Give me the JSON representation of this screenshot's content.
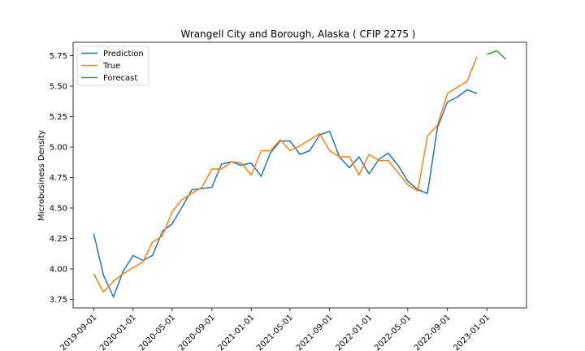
{
  "chart_data": {
    "type": "line",
    "title": "Wrangell City and Borough, Alaska ( CFIP 2275 )",
    "xlabel": "",
    "ylabel": "Microbusiness Density",
    "ylim": [
      3.68,
      5.86
    ],
    "y_ticks": [
      3.75,
      4.0,
      4.25,
      4.5,
      4.75,
      5.0,
      5.25,
      5.5,
      5.75
    ],
    "y_tick_labels": [
      "3.75",
      "4.00",
      "4.25",
      "4.50",
      "4.75",
      "5.00",
      "5.25",
      "5.50",
      "5.75"
    ],
    "x_ticks": [
      "2019-09-01",
      "2020-01-01",
      "2020-05-01",
      "2020-09-01",
      "2021-01-01",
      "2021-05-01",
      "2021-09-01",
      "2022-01-01",
      "2022-05-01",
      "2022-09-01",
      "2023-01-01"
    ],
    "legend_position": "upper left",
    "grid": false,
    "series": [
      {
        "name": "Prediction",
        "color": "#1f77b4",
        "x": [
          "2019-09-01",
          "2019-10-01",
          "2019-11-01",
          "2019-12-01",
          "2020-01-01",
          "2020-02-01",
          "2020-03-01",
          "2020-04-01",
          "2020-05-01",
          "2020-06-01",
          "2020-07-01",
          "2020-08-01",
          "2020-09-01",
          "2020-10-01",
          "2020-11-01",
          "2020-12-01",
          "2021-01-01",
          "2021-02-01",
          "2021-03-01",
          "2021-04-01",
          "2021-05-01",
          "2021-06-01",
          "2021-07-01",
          "2021-08-01",
          "2021-09-01",
          "2021-10-01",
          "2021-11-01",
          "2021-12-01",
          "2022-01-01",
          "2022-02-01",
          "2022-03-01",
          "2022-04-01",
          "2022-05-01",
          "2022-06-01",
          "2022-07-01",
          "2022-08-01",
          "2022-09-01",
          "2022-10-01",
          "2022-11-01",
          "2022-12-01"
        ],
        "values": [
          4.29,
          3.95,
          3.77,
          3.98,
          4.11,
          4.07,
          4.11,
          4.31,
          4.37,
          4.51,
          4.65,
          4.66,
          4.67,
          4.86,
          4.88,
          4.85,
          4.87,
          4.76,
          4.95,
          5.05,
          5.05,
          4.94,
          4.97,
          5.1,
          5.13,
          4.92,
          4.83,
          4.92,
          4.78,
          4.9,
          4.95,
          4.85,
          4.72,
          4.65,
          4.62,
          5.16,
          5.37,
          5.41,
          5.47,
          5.44
        ]
      },
      {
        "name": "True",
        "color": "#ff7f0e",
        "x": [
          "2019-09-01",
          "2019-10-01",
          "2019-11-01",
          "2019-12-01",
          "2020-01-01",
          "2020-02-01",
          "2020-03-01",
          "2020-04-01",
          "2020-05-01",
          "2020-06-01",
          "2020-07-01",
          "2020-08-01",
          "2020-09-01",
          "2020-10-01",
          "2020-11-01",
          "2020-12-01",
          "2021-01-01",
          "2021-02-01",
          "2021-03-01",
          "2021-04-01",
          "2021-05-01",
          "2021-06-01",
          "2021-07-01",
          "2021-08-01",
          "2021-09-01",
          "2021-10-01",
          "2021-11-01",
          "2021-12-01",
          "2022-01-01",
          "2022-02-01",
          "2022-03-01",
          "2022-04-01",
          "2022-05-01",
          "2022-06-01",
          "2022-07-01",
          "2022-08-01",
          "2022-09-01",
          "2022-10-01",
          "2022-11-01",
          "2022-12-01"
        ],
        "values": [
          3.96,
          3.81,
          3.9,
          3.96,
          4.01,
          4.06,
          4.22,
          4.27,
          4.47,
          4.57,
          4.62,
          4.67,
          4.82,
          4.82,
          4.88,
          4.87,
          4.77,
          4.97,
          4.97,
          5.06,
          4.97,
          5.01,
          5.06,
          5.11,
          4.97,
          4.92,
          4.92,
          4.77,
          4.94,
          4.89,
          4.89,
          4.79,
          4.69,
          4.64,
          5.09,
          5.18,
          5.44,
          5.49,
          5.54,
          5.74
        ]
      },
      {
        "name": "Forecast",
        "color": "#2ca02c",
        "x": [
          "2023-01-01",
          "2023-02-01",
          "2023-03-01"
        ],
        "values": [
          5.76,
          5.79,
          5.72
        ]
      }
    ]
  }
}
